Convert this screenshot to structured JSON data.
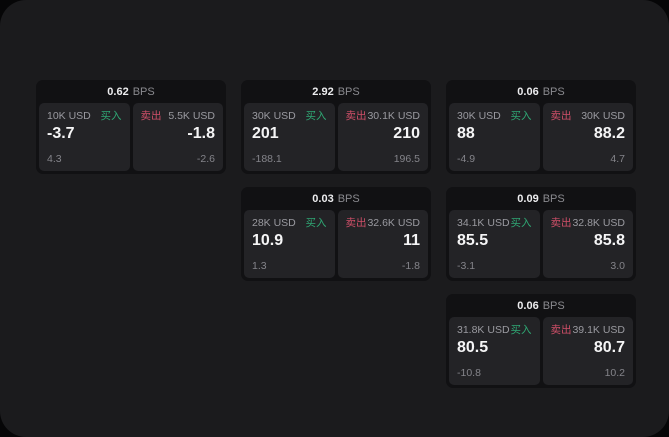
{
  "labels": {
    "bps_unit": "BPS",
    "buy": "买入",
    "sell": "卖出"
  },
  "colors": {
    "panel_bg": "#1b1b1d",
    "card_bg": "#111113",
    "tile_bg": "#232326",
    "buy": "#2fa874",
    "sell": "#cf4f68"
  },
  "cards": [
    {
      "bps": "0.62",
      "row": 1,
      "col": 1,
      "buy": {
        "size": "10K USD",
        "value": "-3.7",
        "sub": "4.3"
      },
      "sell": {
        "size": "5.5K USD",
        "value": "-1.8",
        "sub": "-2.6"
      }
    },
    {
      "bps": "2.92",
      "row": 1,
      "col": 2,
      "buy": {
        "size": "30K USD",
        "value": "201",
        "sub": "-188.1"
      },
      "sell": {
        "size": "30.1K USD",
        "value": "210",
        "sub": "196.5"
      }
    },
    {
      "bps": "0.06",
      "row": 1,
      "col": 3,
      "buy": {
        "size": "30K USD",
        "value": "88",
        "sub": "-4.9"
      },
      "sell": {
        "size": "30K USD",
        "value": "88.2",
        "sub": "4.7"
      }
    },
    {
      "bps": "0.03",
      "row": 2,
      "col": 2,
      "buy": {
        "size": "28K USD",
        "value": "10.9",
        "sub": "1.3"
      },
      "sell": {
        "size": "32.6K USD",
        "value": "11",
        "sub": "-1.8"
      }
    },
    {
      "bps": "0.09",
      "row": 2,
      "col": 3,
      "buy": {
        "size": "34.1K USD",
        "value": "85.5",
        "sub": "-3.1"
      },
      "sell": {
        "size": "32.8K USD",
        "value": "85.8",
        "sub": "3.0"
      }
    },
    {
      "bps": "0.06",
      "row": 3,
      "col": 3,
      "buy": {
        "size": "31.8K USD",
        "value": "80.5",
        "sub": "-10.8"
      },
      "sell": {
        "size": "39.1K USD",
        "value": "80.7",
        "sub": "10.2"
      }
    }
  ]
}
